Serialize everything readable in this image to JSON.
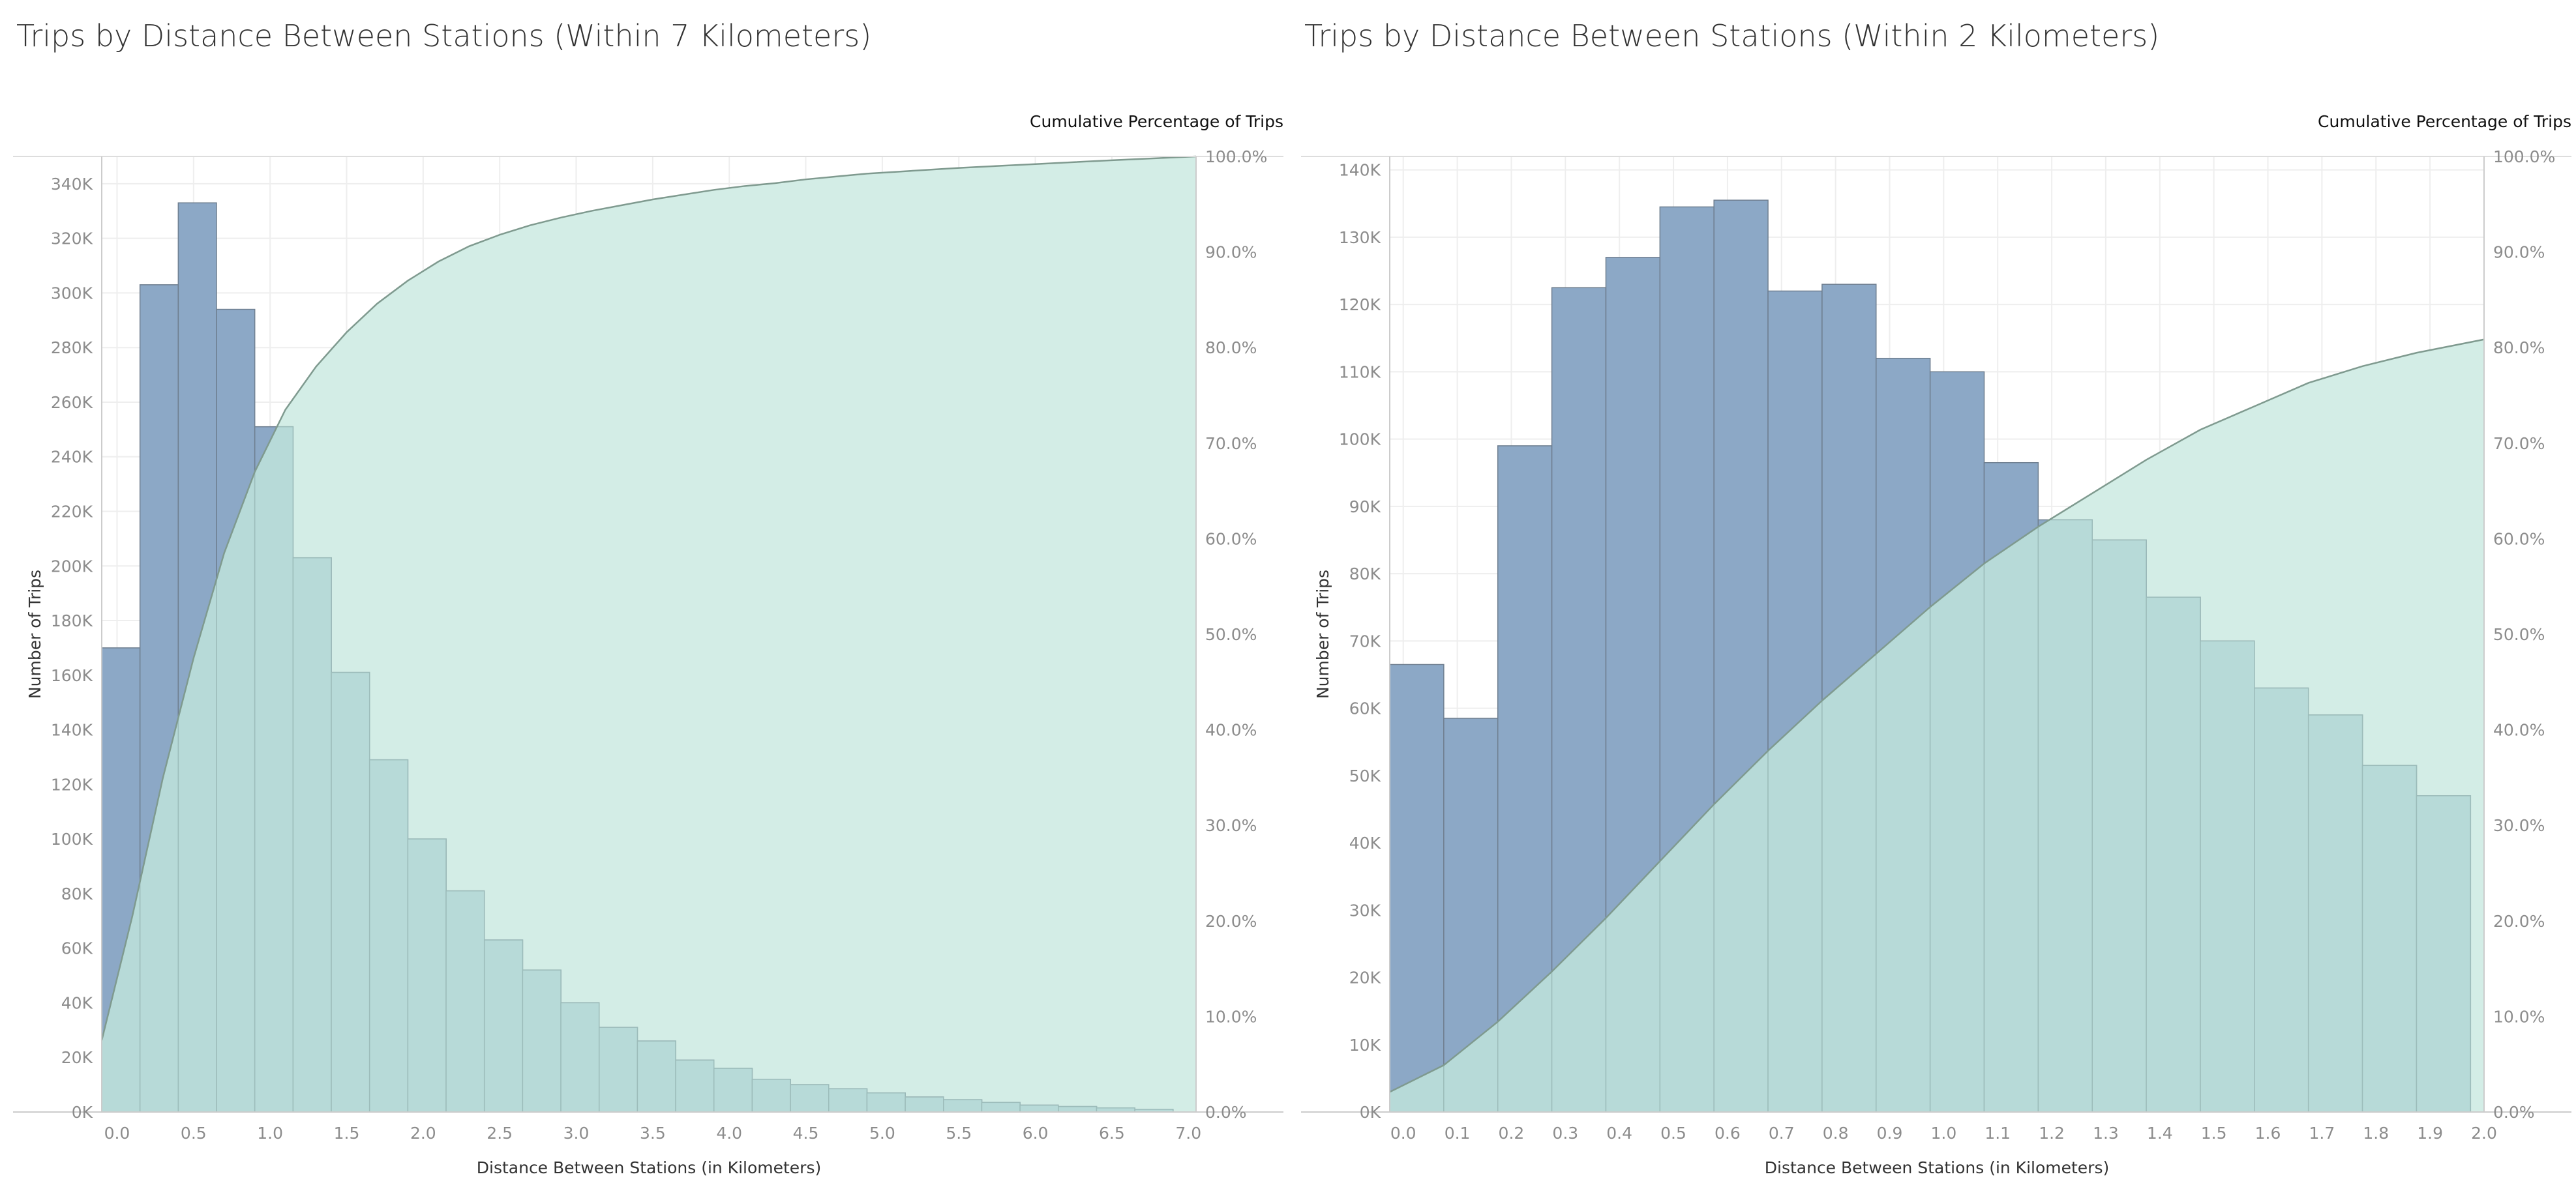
{
  "chart_data": [
    {
      "type": "bar",
      "title": "Trips by Distance Between Stations (Within 7 Kilometers)",
      "xlabel": "Distance Between Stations (in Kilometers)",
      "ylabel": "Number of Trips",
      "y2label": "Cumulative Percentage of Trips",
      "xlim": [
        -0.1,
        7.05
      ],
      "ylim": [
        0,
        350000
      ],
      "y2lim": [
        0,
        100
      ],
      "x_ticks": [
        "0.0",
        "0.5",
        "1.0",
        "1.5",
        "2.0",
        "2.5",
        "3.0",
        "3.5",
        "4.0",
        "4.5",
        "5.0",
        "5.5",
        "6.0",
        "6.5",
        "7.0"
      ],
      "x_tick_values": [
        0,
        0.5,
        1,
        1.5,
        2,
        2.5,
        3,
        3.5,
        4,
        4.5,
        5,
        5.5,
        6,
        6.5,
        7
      ],
      "y_ticks": [
        "0K",
        "20K",
        "40K",
        "60K",
        "80K",
        "100K",
        "120K",
        "140K",
        "160K",
        "180K",
        "200K",
        "220K",
        "240K",
        "260K",
        "280K",
        "300K",
        "320K",
        "340K"
      ],
      "y_tick_values": [
        0,
        20000,
        40000,
        60000,
        80000,
        100000,
        120000,
        140000,
        160000,
        180000,
        200000,
        220000,
        240000,
        260000,
        280000,
        300000,
        320000,
        340000
      ],
      "y2_ticks": [
        "0.0%",
        "10.0%",
        "20.0%",
        "30.0%",
        "40.0%",
        "50.0%",
        "60.0%",
        "70.0%",
        "80.0%",
        "90.0%",
        "100.0%"
      ],
      "y2_tick_values": [
        0,
        10,
        20,
        30,
        40,
        50,
        60,
        70,
        80,
        90,
        100
      ],
      "bin_start": -0.1,
      "bin_width": 0.25,
      "values": [
        170000,
        303000,
        333000,
        294000,
        251000,
        203000,
        161000,
        129000,
        100000,
        81000,
        63000,
        52000,
        40000,
        31000,
        26000,
        19000,
        16000,
        12000,
        10000,
        8500,
        7000,
        5500,
        4500,
        3500,
        2500,
        2000,
        1500,
        1000
      ],
      "cumulative": {
        "x": [
          -0.1,
          0.1,
          0.3,
          0.5,
          0.7,
          0.9,
          1.1,
          1.3,
          1.5,
          1.7,
          1.9,
          2.1,
          2.3,
          2.5,
          2.7,
          2.9,
          3.1,
          3.3,
          3.5,
          3.7,
          3.9,
          4.1,
          4.3,
          4.5,
          4.7,
          4.9,
          5.1,
          5.5,
          6.0,
          6.5,
          7.05
        ],
        "y": [
          7.5,
          20.5,
          35,
          47.5,
          58.5,
          67,
          73.5,
          78,
          81.6,
          84.6,
          87,
          89,
          90.6,
          91.8,
          92.8,
          93.6,
          94.3,
          94.9,
          95.5,
          96.0,
          96.5,
          96.9,
          97.2,
          97.6,
          97.9,
          98.2,
          98.4,
          98.8,
          99.2,
          99.6,
          100
        ]
      },
      "bar_color": "#86a3c3",
      "curve_fill": "#d3ede6",
      "curve_line": "#7f9a8f",
      "overlap_color": "#b7dad8"
    },
    {
      "type": "bar",
      "title": "Trips by Distance Between Stations (Within 2 Kilometers)",
      "xlabel": "Distance Between Stations (in Kilometers)",
      "ylabel": "Number of Trips",
      "y2label": "Cumulative Percentage of Trips",
      "xlim": [
        -0.025,
        2.0
      ],
      "ylim": [
        0,
        142000
      ],
      "y2lim": [
        0,
        100
      ],
      "x_ticks": [
        "0.0",
        "0.1",
        "0.2",
        "0.3",
        "0.4",
        "0.5",
        "0.6",
        "0.7",
        "0.8",
        "0.9",
        "1.0",
        "1.1",
        "1.2",
        "1.3",
        "1.4",
        "1.5",
        "1.6",
        "1.7",
        "1.8",
        "1.9",
        "2.0"
      ],
      "x_tick_values": [
        0,
        0.1,
        0.2,
        0.3,
        0.4,
        0.5,
        0.6,
        0.7,
        0.8,
        0.9,
        1.0,
        1.1,
        1.2,
        1.3,
        1.4,
        1.5,
        1.6,
        1.7,
        1.8,
        1.9,
        2.0
      ],
      "y_ticks": [
        "0K",
        "10K",
        "20K",
        "30K",
        "40K",
        "50K",
        "60K",
        "70K",
        "80K",
        "90K",
        "100K",
        "110K",
        "120K",
        "130K",
        "140K"
      ],
      "y_tick_values": [
        0,
        10000,
        20000,
        30000,
        40000,
        50000,
        60000,
        70000,
        80000,
        90000,
        100000,
        110000,
        120000,
        130000,
        140000
      ],
      "y2_ticks": [
        "0.0%",
        "10.0%",
        "20.0%",
        "30.0%",
        "40.0%",
        "50.0%",
        "60.0%",
        "70.0%",
        "80.0%",
        "90.0%",
        "100.0%"
      ],
      "y2_tick_values": [
        0,
        10,
        20,
        30,
        40,
        50,
        60,
        70,
        80,
        90,
        100
      ],
      "bin_start": -0.025,
      "bin_width": 0.1,
      "values": [
        66500,
        58500,
        99000,
        122500,
        127000,
        134500,
        135500,
        122000,
        123000,
        112000,
        110000,
        96500,
        88000,
        85000,
        76500,
        70000,
        63000,
        59000,
        51500,
        47000
      ],
      "cumulative": {
        "x": [
          -0.025,
          0.075,
          0.175,
          0.275,
          0.375,
          0.475,
          0.575,
          0.675,
          0.775,
          0.875,
          0.975,
          1.075,
          1.175,
          1.275,
          1.375,
          1.475,
          1.575,
          1.675,
          1.775,
          1.875,
          2.0
        ],
        "y": [
          3,
          7,
          13.5,
          21,
          29,
          37.5,
          46,
          54,
          61.5,
          68.5,
          75.5,
          82,
          87.5,
          92.5,
          97.5,
          102,
          105.5,
          109,
          111.5,
          113.5,
          115.5
        ],
        "unit_scale": 0.7
      },
      "bar_color": "#86a3c3",
      "curve_fill": "#d3ede6",
      "curve_line": "#7f9a8f",
      "overlap_color": "#b7dad8"
    }
  ]
}
